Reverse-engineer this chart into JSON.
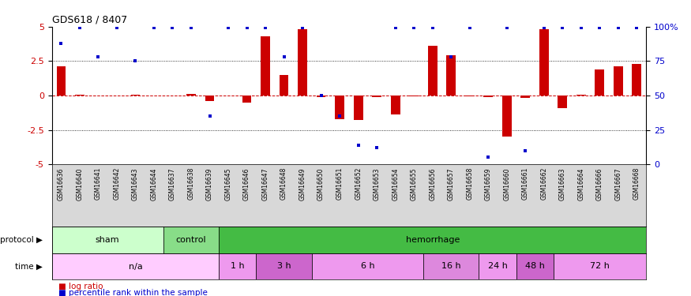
{
  "title": "GDS618 / 8407",
  "samples": [
    "GSM16636",
    "GSM16640",
    "GSM16641",
    "GSM16642",
    "GSM16643",
    "GSM16644",
    "GSM16637",
    "GSM16638",
    "GSM16639",
    "GSM16645",
    "GSM16646",
    "GSM16647",
    "GSM16648",
    "GSM16649",
    "GSM16650",
    "GSM16651",
    "GSM16652",
    "GSM16653",
    "GSM16654",
    "GSM16655",
    "GSM16656",
    "GSM16657",
    "GSM16658",
    "GSM16659",
    "GSM16660",
    "GSM16661",
    "GSM16662",
    "GSM16663",
    "GSM16664",
    "GSM16666",
    "GSM16667",
    "GSM16668"
  ],
  "log_ratio": [
    2.1,
    0.05,
    0.0,
    0.0,
    0.05,
    0.0,
    0.0,
    0.1,
    -0.4,
    0.0,
    -0.5,
    4.3,
    1.5,
    4.8,
    -0.1,
    -1.7,
    -1.8,
    -0.1,
    -1.4,
    -0.05,
    3.6,
    2.9,
    -0.05,
    -0.1,
    -3.0,
    -0.2,
    4.8,
    -0.9,
    0.05,
    1.9,
    2.1,
    2.3
  ],
  "pct_rank": [
    88,
    99,
    78,
    99,
    75,
    99,
    99,
    99,
    35,
    99,
    99,
    99,
    78,
    99,
    50,
    35,
    14,
    12,
    99,
    99,
    99,
    78,
    99,
    5,
    99,
    10,
    99,
    99,
    99,
    99,
    99,
    99
  ],
  "protocol_groups": [
    {
      "label": "sham",
      "start": 0,
      "end": 6,
      "color": "#ccffcc"
    },
    {
      "label": "control",
      "start": 6,
      "end": 9,
      "color": "#88dd88"
    },
    {
      "label": "hemorrhage",
      "start": 9,
      "end": 32,
      "color": "#44bb44"
    }
  ],
  "time_groups": [
    {
      "label": "n/a",
      "start": 0,
      "end": 9,
      "color": "#ffccff"
    },
    {
      "label": "1 h",
      "start": 9,
      "end": 11,
      "color": "#ee99ee"
    },
    {
      "label": "3 h",
      "start": 11,
      "end": 14,
      "color": "#cc66cc"
    },
    {
      "label": "6 h",
      "start": 14,
      "end": 20,
      "color": "#ee99ee"
    },
    {
      "label": "16 h",
      "start": 20,
      "end": 23,
      "color": "#dd88dd"
    },
    {
      "label": "24 h",
      "start": 23,
      "end": 25,
      "color": "#ee99ee"
    },
    {
      "label": "48 h",
      "start": 25,
      "end": 27,
      "color": "#cc66cc"
    },
    {
      "label": "72 h",
      "start": 27,
      "end": 32,
      "color": "#ee99ee"
    }
  ],
  "ylim": [
    -5,
    5
  ],
  "yticks_left": [
    -5,
    -2.5,
    0,
    2.5,
    5
  ],
  "yticks_right": [
    0,
    25,
    50,
    75,
    100
  ],
  "bar_color": "#cc0000",
  "dot_color": "#0000cc",
  "bg_color": "#ffffff",
  "ref_line_color": "#cc0000",
  "label_protocol": "protocol",
  "label_time": "time",
  "legend_log": "log ratio",
  "legend_pct": "percentile rank within the sample"
}
